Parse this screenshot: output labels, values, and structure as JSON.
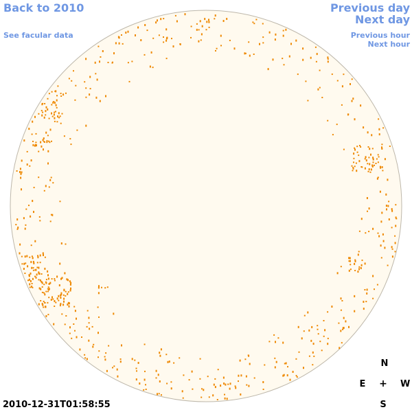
{
  "nav": {
    "back": "Back to 2010",
    "facular": "See facular data",
    "prev_day": "Previous day",
    "next_day": "Next day",
    "prev_hour": "Previous hour",
    "next_hour": "Next hour"
  },
  "timestamp": "2010-12-31T01:58:55",
  "compass": {
    "north": "N",
    "south": "S",
    "east": "E",
    "west": "W",
    "center": "+"
  },
  "colors": {
    "link": "#6f97e3",
    "disk_fill": "#fffaef",
    "disk_edge": "#bdb7aa",
    "facula": "#ee8800"
  }
}
